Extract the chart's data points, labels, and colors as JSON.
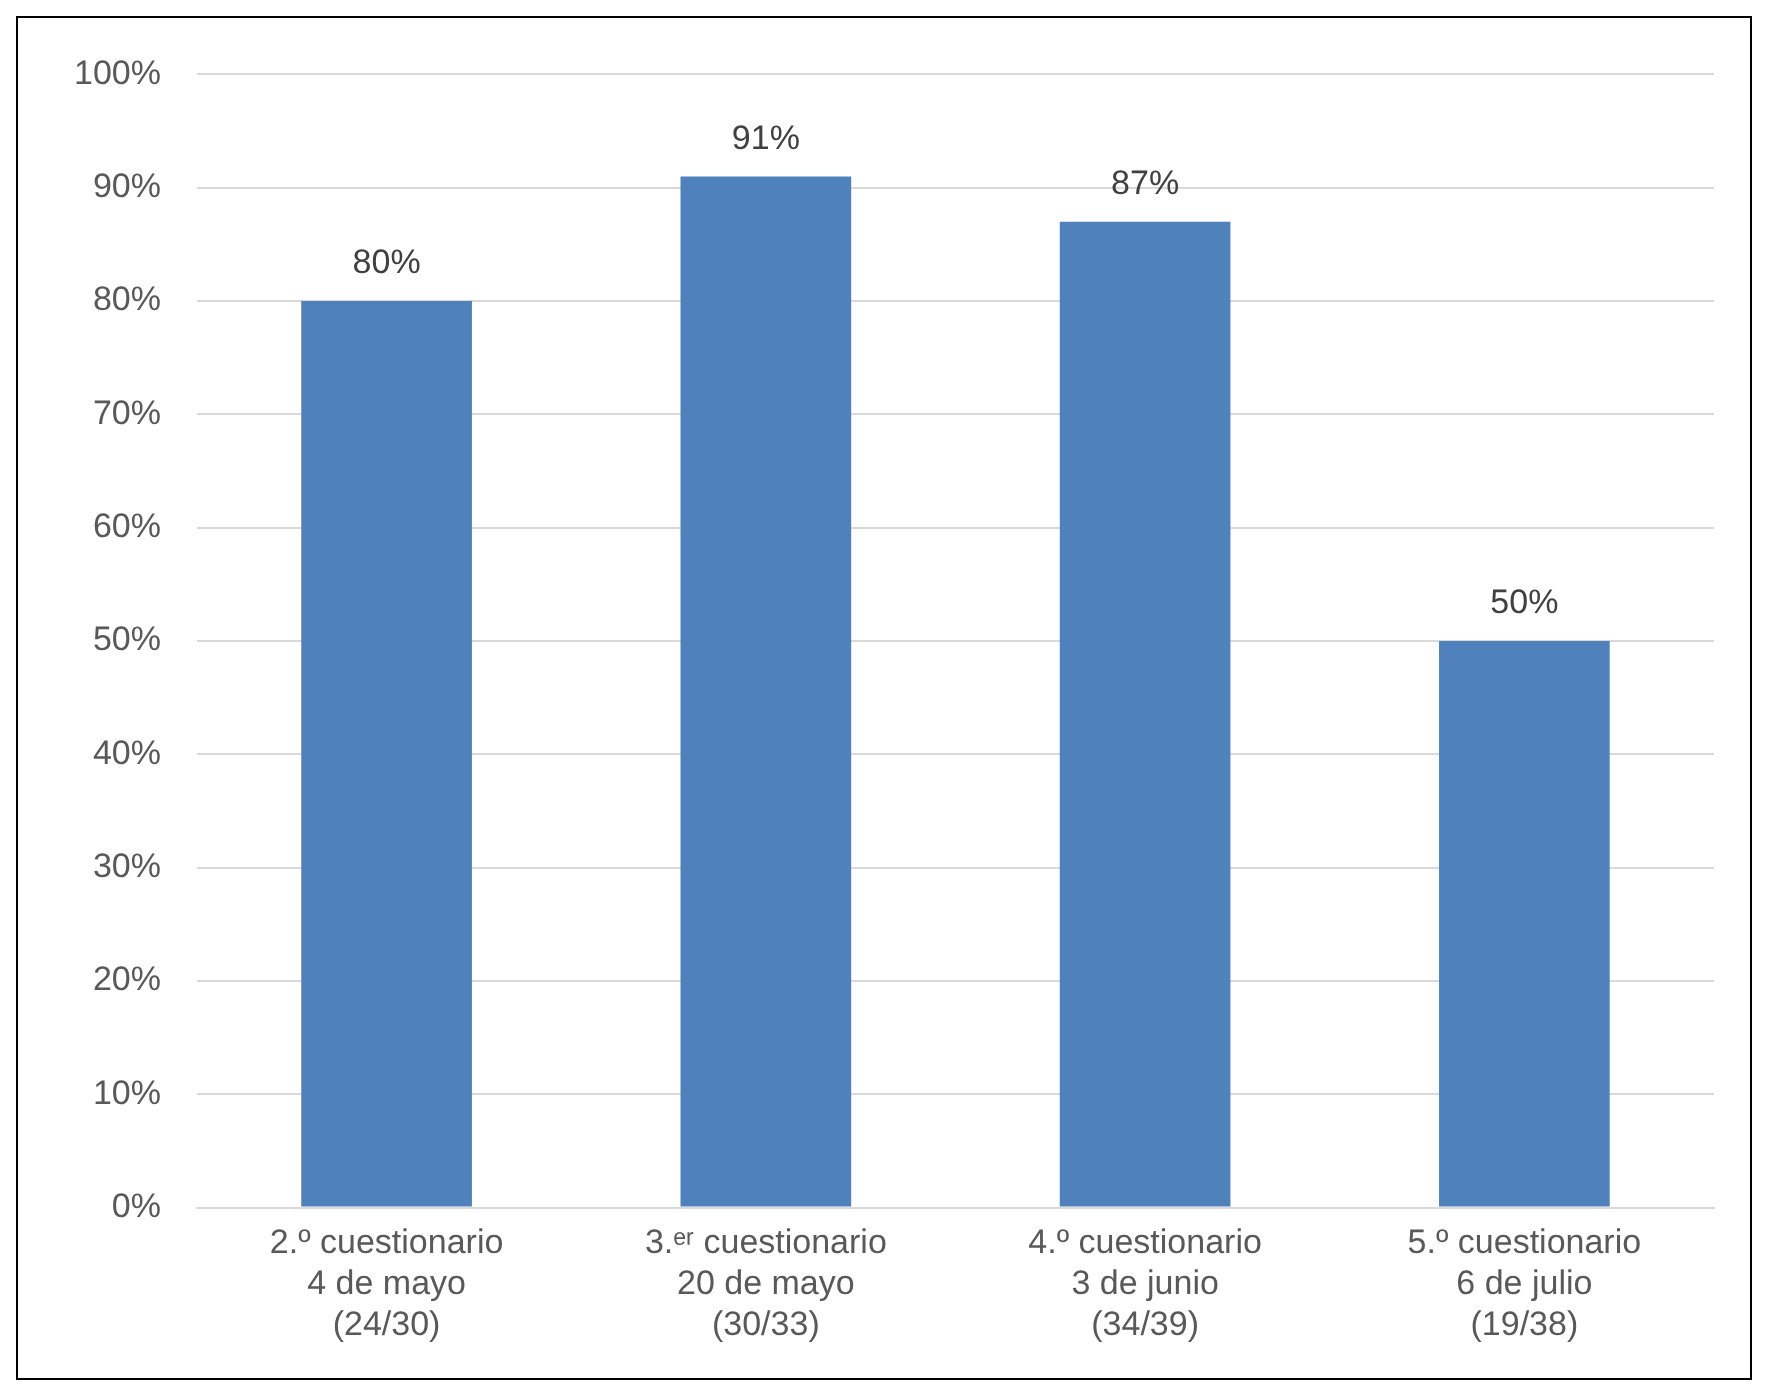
{
  "chart_data": {
    "type": "bar",
    "categories": [
      "2.º cuestionario\n4 de mayo\n(24/30)",
      "3.ᵉʳ cuestionario\n20 de mayo\n(30/33)",
      "4.º cuestionario\n3 de junio\n(34/39)",
      "5.º cuestionario\n6 de julio\n(19/38)"
    ],
    "values": [
      80,
      91,
      87,
      50
    ],
    "color": "#4f81bd",
    "ylim": [
      0,
      100
    ],
    "yticks": [
      {
        "value": 0,
        "label": "0%"
      },
      {
        "value": 10,
        "label": "10%"
      },
      {
        "value": 20,
        "label": "20%"
      },
      {
        "value": 30,
        "label": "30%"
      },
      {
        "value": 40,
        "label": "40%"
      },
      {
        "value": 50,
        "label": "50%"
      },
      {
        "value": 60,
        "label": "60%"
      },
      {
        "value": 70,
        "label": "70%"
      },
      {
        "value": 80,
        "label": "80%"
      },
      {
        "value": 90,
        "label": "90%"
      },
      {
        "value": 100,
        "label": "100%"
      }
    ],
    "value_labels": [
      "80%",
      "91%",
      "87%",
      "50%"
    ],
    "grid": "y",
    "legend": false
  }
}
